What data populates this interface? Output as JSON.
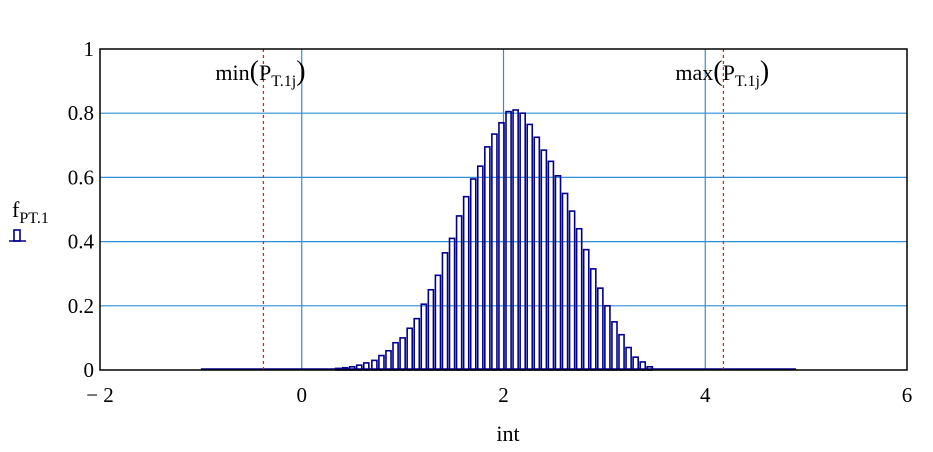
{
  "chart_data": {
    "type": "bar",
    "title": "",
    "xlabel": "int",
    "ylabel_main": "f",
    "ylabel_sub": "PT.1",
    "xlim": [
      -2,
      6
    ],
    "ylim": [
      0,
      1
    ],
    "x_ticks": [
      -2,
      0,
      2,
      4,
      6
    ],
    "x_tick_labels": [
      "− 2",
      "0",
      "2",
      "4",
      "6"
    ],
    "y_ticks": [
      0,
      0.2,
      0.4,
      0.6,
      0.8,
      1
    ],
    "y_tick_labels": [
      "0",
      "0.2",
      "0.4",
      "0.6",
      "0.8",
      "1"
    ],
    "grid": true,
    "series": [
      {
        "x": [
          0.36,
          0.43,
          0.5,
          0.57,
          0.64,
          0.72,
          0.79,
          0.86,
          0.93,
          1.0,
          1.07,
          1.14,
          1.21,
          1.28,
          1.35,
          1.42,
          1.49,
          1.56,
          1.63,
          1.7,
          1.77,
          1.84,
          1.91,
          1.98,
          2.05,
          2.12,
          2.19,
          2.26,
          2.33,
          2.4,
          2.47,
          2.54,
          2.61,
          2.68,
          2.75,
          2.82,
          2.89,
          2.96,
          3.03,
          3.1,
          3.17,
          3.24,
          3.31,
          3.38,
          3.45
        ],
        "values": [
          0.005,
          0.007,
          0.01,
          0.015,
          0.022,
          0.03,
          0.045,
          0.06,
          0.085,
          0.1,
          0.13,
          0.16,
          0.205,
          0.25,
          0.295,
          0.365,
          0.41,
          0.48,
          0.54,
          0.595,
          0.635,
          0.695,
          0.735,
          0.77,
          0.805,
          0.81,
          0.8,
          0.765,
          0.725,
          0.685,
          0.65,
          0.605,
          0.55,
          0.495,
          0.44,
          0.375,
          0.315,
          0.255,
          0.2,
          0.15,
          0.11,
          0.07,
          0.04,
          0.025,
          0.01
        ]
      }
    ],
    "vlines": [
      {
        "x": -0.38,
        "label_func": "min",
        "label_arg": "P",
        "label_sub": "T.1j"
      },
      {
        "x": 4.18,
        "label_func": "max",
        "label_arg": "P",
        "label_sub": "T.1j"
      }
    ],
    "colors": {
      "bars": "#00008b",
      "grid": "#2e8fd6",
      "vlines": "#d62828",
      "axes": "#000000"
    }
  }
}
